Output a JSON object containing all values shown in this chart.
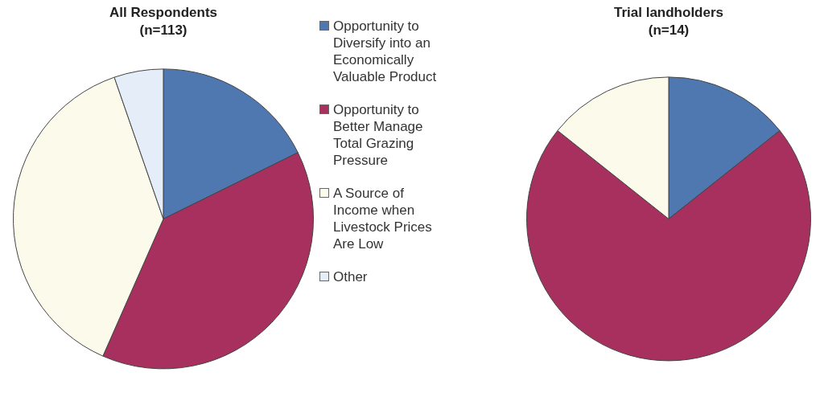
{
  "chart_data": [
    {
      "type": "pie",
      "title": "All Respondents",
      "subtitle": "(n=113)",
      "categories": [
        "Opportunity to Diversify into an Economically Valuable Product",
        "Opportunity to Better Manage Total Grazing Pressure",
        "A Source of Income when Livestock Prices Are Low",
        "Other"
      ],
      "values": [
        17.7,
        38.9,
        38.1,
        5.3
      ],
      "colors": [
        "#4f77b0",
        "#a8305f",
        "#fcfaea",
        "#e4edf8"
      ],
      "legend": "right"
    },
    {
      "type": "pie",
      "title": "Trial landholders",
      "subtitle": "(n=14)",
      "categories": [
        null,
        null,
        null,
        null
      ],
      "values": [
        14.3,
        71.4,
        14.3,
        0
      ],
      "colors": [
        "#4f77b0",
        "#a8305f",
        "#fcfaea",
        "#e4edf8"
      ]
    }
  ]
}
